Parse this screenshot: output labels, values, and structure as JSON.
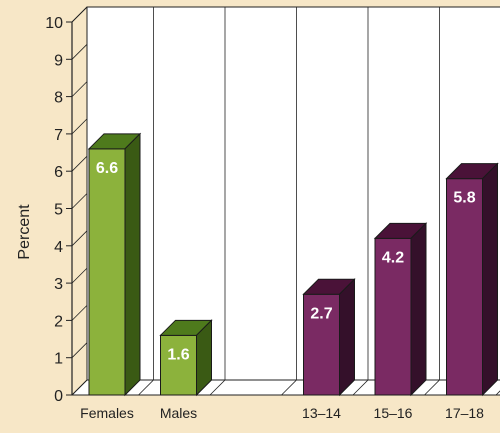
{
  "background": "#f7e7c7",
  "chart_data": {
    "type": "bar",
    "ylabel": "Percent",
    "xlabel": "",
    "title": "",
    "ylim": [
      0,
      10
    ],
    "yticks": [
      "0",
      "1",
      "2",
      "3",
      "4",
      "5",
      "6",
      "7",
      "8",
      "9",
      "10"
    ],
    "categories": [
      "Females",
      "Males",
      "",
      "13–14",
      "15–16",
      "17–18"
    ],
    "values": [
      6.6,
      1.6,
      null,
      2.7,
      4.2,
      5.8
    ],
    "value_labels": [
      "6.6",
      "1.6",
      "",
      "2.7",
      "4.2",
      "5.8"
    ],
    "grid": "vertical",
    "colors": {
      "green_front": "#8cb23c",
      "green_top": "#4e7a1c",
      "green_side": "#3a5a14",
      "purple_front": "#7a2a63",
      "purple_top": "#4a1238",
      "purple_side": "#34102a"
    },
    "bar_colors": [
      "green",
      "green",
      "",
      "purple",
      "purple",
      "purple"
    ]
  }
}
